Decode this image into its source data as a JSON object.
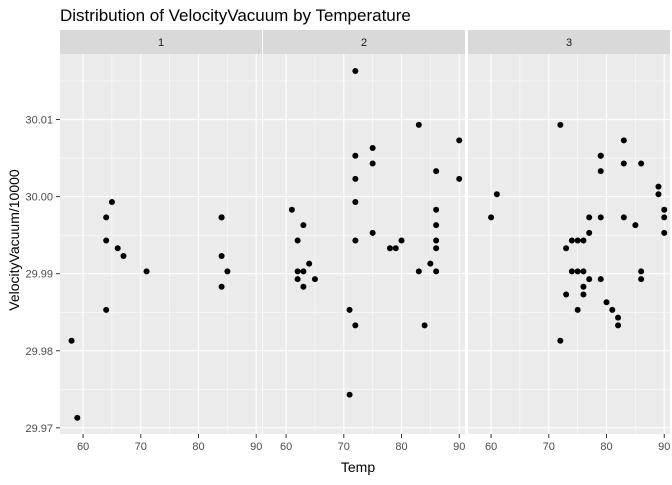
{
  "chart_data": {
    "type": "scatter",
    "title": "Distribution of VelocityVacuum by Temperature",
    "xlabel": "Temp",
    "ylabel": "VelocityVacuum/10000",
    "xlim": [
      56,
      91
    ],
    "ylim": [
      29.9692,
      30.0185
    ],
    "x_ticks": [
      60,
      70,
      80,
      90
    ],
    "y_ticks": [
      29.97,
      29.98,
      29.99,
      30.0,
      30.01
    ],
    "y_tick_labels": [
      "29.97",
      "29.98",
      "29.99",
      "30.00",
      "30.01"
    ],
    "grid": true,
    "legend": "none",
    "colors": {
      "panel_bg": "#ebebeb",
      "strip_bg": "#d9d9d9",
      "grid_major": "#ffffff",
      "point": "#000000",
      "text": "#000000",
      "tick_text": "#4d4d4d"
    },
    "facets": [
      {
        "label": "1",
        "points": [
          [
            58,
            29.9813
          ],
          [
            59,
            29.9713
          ],
          [
            64,
            29.9973
          ],
          [
            64,
            29.9943
          ],
          [
            64,
            29.9853
          ],
          [
            65,
            29.9993
          ],
          [
            66,
            29.9933
          ],
          [
            67,
            29.9923
          ],
          [
            71,
            29.9903
          ],
          [
            84,
            29.9973
          ],
          [
            84,
            29.9973
          ],
          [
            84,
            29.9923
          ],
          [
            84,
            29.9883
          ],
          [
            85,
            29.9903
          ]
        ]
      },
      {
        "label": "2",
        "points": [
          [
            61,
            29.9983
          ],
          [
            62,
            29.9943
          ],
          [
            62,
            29.9903
          ],
          [
            62,
            29.9893
          ],
          [
            63,
            29.9963
          ],
          [
            63,
            29.9903
          ],
          [
            63,
            29.9883
          ],
          [
            64,
            29.9913
          ],
          [
            65,
            29.9893
          ],
          [
            71,
            29.9743
          ],
          [
            71,
            29.9853
          ],
          [
            72,
            30.0163
          ],
          [
            72,
            30.0053
          ],
          [
            72,
            30.0023
          ],
          [
            72,
            29.9993
          ],
          [
            72,
            29.9943
          ],
          [
            72,
            29.9833
          ],
          [
            75,
            30.0063
          ],
          [
            75,
            30.0043
          ],
          [
            75,
            29.9953
          ],
          [
            78,
            29.9933
          ],
          [
            79,
            29.9933
          ],
          [
            80,
            29.9943
          ],
          [
            83,
            30.0093
          ],
          [
            83,
            29.9903
          ],
          [
            84,
            29.9833
          ],
          [
            85,
            29.9913
          ],
          [
            86,
            30.0033
          ],
          [
            86,
            29.9983
          ],
          [
            86,
            29.9963
          ],
          [
            86,
            29.9943
          ],
          [
            86,
            29.9933
          ],
          [
            86,
            29.9903
          ],
          [
            90,
            30.0073
          ],
          [
            90,
            30.0023
          ]
        ]
      },
      {
        "label": "3",
        "points": [
          [
            60,
            29.9973
          ],
          [
            61,
            30.0003
          ],
          [
            72,
            30.0093
          ],
          [
            72,
            29.9813
          ],
          [
            73,
            29.9933
          ],
          [
            73,
            29.9873
          ],
          [
            74,
            29.9943
          ],
          [
            74,
            29.9903
          ],
          [
            75,
            29.9943
          ],
          [
            75,
            29.9903
          ],
          [
            75,
            29.9853
          ],
          [
            76,
            29.9943
          ],
          [
            76,
            29.9903
          ],
          [
            76,
            29.9883
          ],
          [
            76,
            29.9873
          ],
          [
            77,
            29.9973
          ],
          [
            77,
            29.9953
          ],
          [
            77,
            29.9893
          ],
          [
            79,
            30.0053
          ],
          [
            79,
            30.0053
          ],
          [
            79,
            30.0033
          ],
          [
            79,
            29.9973
          ],
          [
            79,
            29.9893
          ],
          [
            80,
            29.9863
          ],
          [
            81,
            29.9853
          ],
          [
            82,
            29.9843
          ],
          [
            82,
            29.9833
          ],
          [
            83,
            30.0073
          ],
          [
            83,
            30.0043
          ],
          [
            83,
            29.9973
          ],
          [
            85,
            29.9963
          ],
          [
            86,
            30.0043
          ],
          [
            86,
            29.9903
          ],
          [
            86,
            29.9893
          ],
          [
            89,
            30.0013
          ],
          [
            89,
            30.0003
          ],
          [
            90,
            29.9983
          ],
          [
            90,
            29.9973
          ],
          [
            90,
            29.9953
          ]
        ]
      }
    ]
  }
}
